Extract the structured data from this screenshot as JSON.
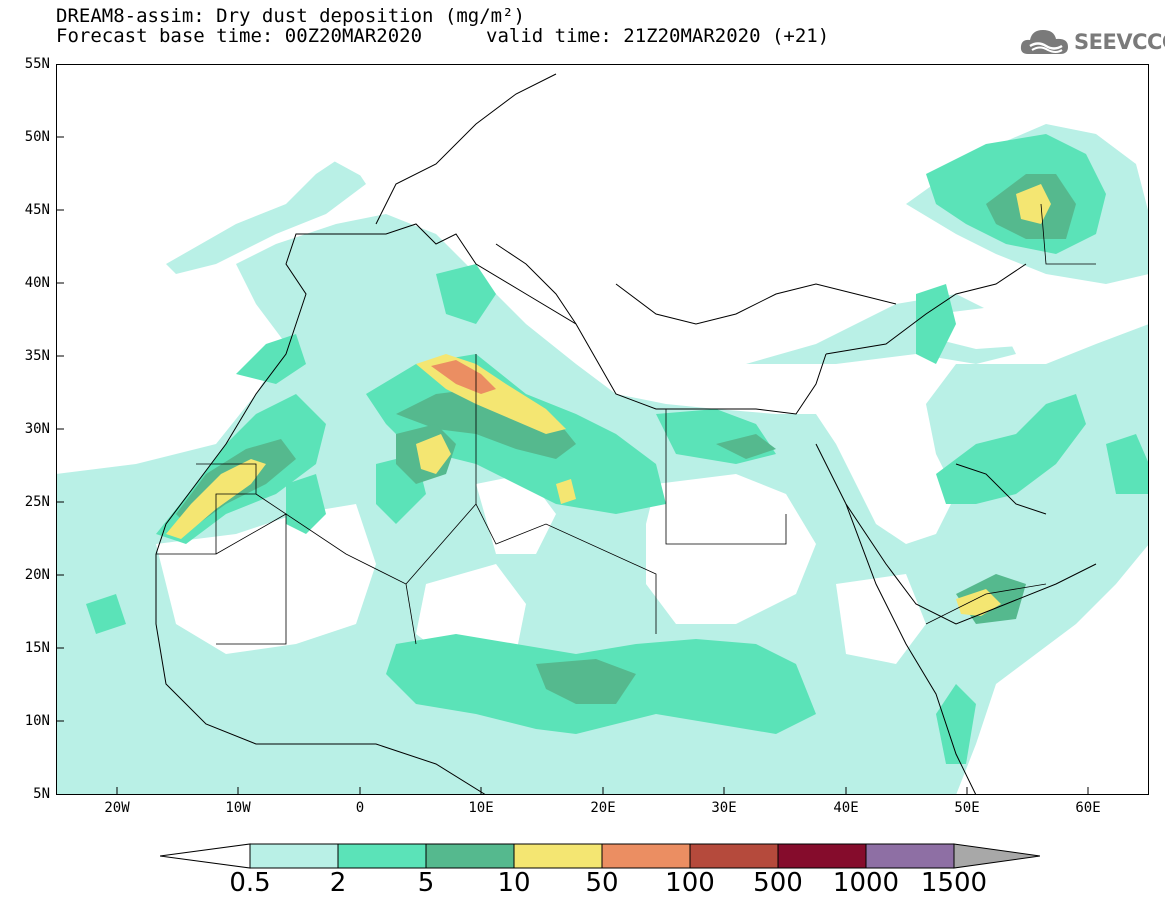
{
  "header": {
    "title_line1": "DREAM8-assim: Dry dust deposition (mg/m²)",
    "title_line2": "Forecast base time: 00Z20MAR2020",
    "valid_time": "valid time: 21Z20MAR2020 (+21)",
    "logo_text": "SEEVCCC",
    "logo_icon": "cloud-icon"
  },
  "map": {
    "lon_range": [
      -25,
      65
    ],
    "lat_range": [
      5,
      55
    ],
    "lat_labels": [
      "55N",
      "50N",
      "45N",
      "40N",
      "35N",
      "30N",
      "25N",
      "20N",
      "15N",
      "10N",
      "5N"
    ],
    "lon_labels": [
      "20W",
      "10W",
      "0",
      "10E",
      "20E",
      "30E",
      "40E",
      "50E",
      "60E"
    ]
  },
  "legend": {
    "labels": [
      "0.5",
      "2",
      "5",
      "10",
      "50",
      "100",
      "500",
      "1000",
      "1500"
    ],
    "colors": [
      "#b9f0e6",
      "#5be3b8",
      "#55b98e",
      "#f4e672",
      "#eb8e62",
      "#b54a3c",
      "#850c2c",
      "#8e6fa4",
      "#a8a8a8"
    ]
  }
}
